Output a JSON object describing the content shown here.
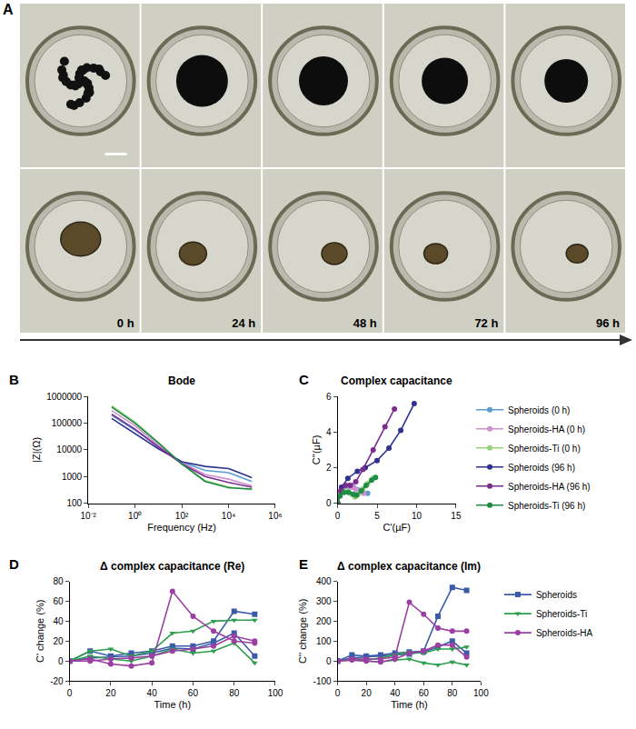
{
  "image_panel": {
    "panel": "A",
    "times": [
      "0 h",
      "24 h",
      "48 h",
      "72 h",
      "96 h"
    ]
  },
  "chart_data": [
    {
      "panel": "B",
      "type": "line",
      "title": "Bode",
      "x_label": "Frequency (Hz)",
      "y_label": "|Z|(Ω)",
      "log": true,
      "grid": false,
      "x": [
        0.1,
        1,
        10,
        100,
        1000,
        10000,
        100000
      ],
      "xlim": [
        0.01,
        1000000
      ],
      "xticks": [
        {
          "value": 0.01,
          "label": "10⁻²"
        },
        {
          "value": 1,
          "label": "10⁰"
        },
        {
          "value": 100,
          "label": "10²"
        },
        {
          "value": 10000,
          "label": "10⁴"
        },
        {
          "value": 1000000,
          "label": "10⁶"
        }
      ],
      "ylim": [
        100,
        1000000
      ],
      "yticks": [
        100,
        1000,
        10000,
        100000,
        1000000
      ],
      "series": [
        {
          "name": "Spheroids (0 h)",
          "color": "#5b9bd5",
          "values": [
            200000,
            55000,
            13000,
            3500,
            1700,
            1400,
            650
          ]
        },
        {
          "name": "Spheroids-HA (0 h)",
          "color": "#d08fd0",
          "values": [
            300000,
            80000,
            15000,
            3300,
            1200,
            800,
            450
          ]
        },
        {
          "name": "Spheroids-Ti (0 h)",
          "color": "#99d07b",
          "values": [
            450000,
            110000,
            19000,
            3000,
            700,
            400,
            320
          ]
        },
        {
          "name": "Spheroids (96 h)",
          "color": "#2e3192",
          "values": [
            150000,
            42000,
            11000,
            3600,
            2400,
            2000,
            900
          ]
        },
        {
          "name": "Spheroids-HA (96 h)",
          "color": "#7b2c8f",
          "values": [
            220000,
            60000,
            13000,
            3000,
            1000,
            600,
            400
          ]
        },
        {
          "name": "Spheroids-Ti (96 h)",
          "color": "#1e8c45",
          "values": [
            400000,
            100000,
            18000,
            3000,
            650,
            380,
            340
          ]
        }
      ]
    },
    {
      "panel": "C",
      "type": "line",
      "title": "Complex capacitance",
      "x_label": "C'(µF)",
      "y_label": "C''(µF)",
      "grid": false,
      "legend": "right",
      "marker": "circle",
      "xlim": [
        0,
        15
      ],
      "xticks": [
        0,
        5,
        10,
        15
      ],
      "ylim": [
        0,
        6
      ],
      "yticks": [
        0,
        2,
        4,
        6
      ],
      "series": [
        {
          "name": "Spheroids (0 h)",
          "color": "#5b9bd5",
          "x": [
            0,
            0.3,
            0.8,
            1.4,
            2,
            2.6,
            3.2,
            3.8
          ],
          "values": [
            0,
            0.5,
            0.85,
            0.95,
            0.9,
            0.75,
            0.6,
            0.55
          ]
        },
        {
          "name": "Spheroids-HA (0 h)",
          "color": "#d08fd0",
          "x": [
            0,
            0.3,
            0.8,
            1.3,
            1.8,
            2.3,
            2.8,
            3.3
          ],
          "values": [
            0,
            0.6,
            0.95,
            1.0,
            0.9,
            0.8,
            0.7,
            0.55
          ]
        },
        {
          "name": "Spheroids-Ti (0 h)",
          "color": "#99d07b",
          "x": [
            0,
            0.3,
            0.8,
            1.3,
            1.8,
            2.2,
            2.6,
            3.2,
            3.8,
            4.5
          ],
          "values": [
            0,
            0.5,
            0.7,
            0.65,
            0.5,
            0.35,
            0.5,
            0.8,
            1.1,
            1.4
          ]
        },
        {
          "name": "Spheroids (96 h)",
          "color": "#2e3192",
          "x": [
            0,
            0.5,
            1.3,
            2.5,
            3.5,
            5,
            6.5,
            8,
            9.7
          ],
          "values": [
            0,
            0.9,
            1.4,
            1.8,
            2.0,
            2.4,
            3.1,
            4.1,
            5.6
          ]
        },
        {
          "name": "Spheroids-HA (96 h)",
          "color": "#7b2c8f",
          "x": [
            0,
            0.4,
            1,
            1.6,
            2.3,
            3.2,
            4.5,
            6,
            7.2
          ],
          "values": [
            0,
            0.7,
            1.0,
            1.0,
            1.2,
            1.9,
            3.0,
            4.3,
            5.3
          ]
        },
        {
          "name": "Spheroids-Ti (96 h)",
          "color": "#1e8c45",
          "x": [
            0,
            0.3,
            0.8,
            1.4,
            2,
            2.4,
            3,
            3.6,
            4.3,
            4.8
          ],
          "values": [
            0,
            0.4,
            0.6,
            0.6,
            0.5,
            0.45,
            0.7,
            1.0,
            1.3,
            1.45
          ]
        }
      ]
    },
    {
      "panel": "D",
      "type": "line",
      "title": "Δ complex capacitance (Re)",
      "x_label": "Time (h)",
      "y_label": "C' change (%)",
      "grid": false,
      "x": [
        0,
        10,
        20,
        30,
        40,
        50,
        60,
        70,
        80,
        90
      ],
      "xlim": [
        0,
        100
      ],
      "xticks": [
        0,
        20,
        40,
        60,
        80,
        100
      ],
      "ylim": [
        -20,
        80
      ],
      "yticks": [
        -20,
        0,
        20,
        40,
        60,
        80
      ],
      "series": [
        {
          "name": "Spheroids",
          "color": "#3a5ba9",
          "marker": "square",
          "values": [
            0,
            10,
            5,
            8,
            10,
            15,
            15,
            20,
            50,
            47
          ]
        },
        {
          "name": "Spheroids",
          "color": "#3a5ba9",
          "marker": "square",
          "values": [
            0,
            3,
            4,
            5,
            8,
            13,
            12,
            18,
            28,
            5
          ]
        },
        {
          "name": "Spheroids-Ti",
          "color": "#2e9e4f",
          "marker": "triangle-down",
          "values": [
            0,
            10,
            12,
            5,
            10,
            28,
            30,
            40,
            41,
            41
          ]
        },
        {
          "name": "Spheroids-Ti",
          "color": "#2e9e4f",
          "marker": "triangle-down",
          "values": [
            0,
            5,
            2,
            0,
            5,
            12,
            8,
            10,
            18,
            -2
          ]
        },
        {
          "name": "Spheroids-HA",
          "color": "#9b3fa3",
          "marker": "circle",
          "values": [
            0,
            2,
            -3,
            -5,
            -2,
            70,
            45,
            30,
            20,
            18
          ]
        },
        {
          "name": "Spheroids-HA",
          "color": "#9b3fa3",
          "marker": "circle",
          "values": [
            0,
            0,
            2,
            3,
            5,
            10,
            12,
            15,
            25,
            20
          ]
        }
      ]
    },
    {
      "panel": "E",
      "type": "line",
      "title": "Δ complex capacitance (Im)",
      "x_label": "Time (h)",
      "y_label": "C'' change (%)",
      "grid": false,
      "legend": "right",
      "x": [
        0,
        10,
        20,
        30,
        40,
        50,
        60,
        70,
        80,
        90
      ],
      "xlim": [
        0,
        100
      ],
      "xticks": [
        0,
        20,
        40,
        60,
        80,
        100
      ],
      "ylim": [
        -100,
        400
      ],
      "yticks": [
        -100,
        0,
        100,
        200,
        300,
        400
      ],
      "series": [
        {
          "name": "Spheroids",
          "color": "#3a5ba9",
          "marker": "square",
          "values": [
            0,
            30,
            25,
            30,
            40,
            45,
            50,
            225,
            370,
            355
          ]
        },
        {
          "name": "Spheroids",
          "color": "#3a5ba9",
          "marker": "square",
          "values": [
            0,
            15,
            20,
            25,
            30,
            35,
            45,
            70,
            100,
            40
          ]
        },
        {
          "name": "Spheroids-Ti",
          "color": "#2e9e4f",
          "marker": "triangle-down",
          "values": [
            0,
            10,
            5,
            15,
            30,
            45,
            40,
            60,
            60,
            70
          ]
        },
        {
          "name": "Spheroids-Ti",
          "color": "#2e9e4f",
          "marker": "triangle-down",
          "values": [
            0,
            5,
            0,
            -5,
            5,
            10,
            -10,
            -20,
            -5,
            -20
          ]
        },
        {
          "name": "Spheroids-HA",
          "color": "#9b3fa3",
          "marker": "circle",
          "values": [
            0,
            10,
            10,
            10,
            20,
            295,
            235,
            165,
            150,
            150
          ]
        },
        {
          "name": "Spheroids-HA",
          "color": "#9b3fa3",
          "marker": "circle",
          "values": [
            0,
            5,
            0,
            -5,
            10,
            40,
            50,
            80,
            80,
            20
          ]
        }
      ]
    }
  ]
}
